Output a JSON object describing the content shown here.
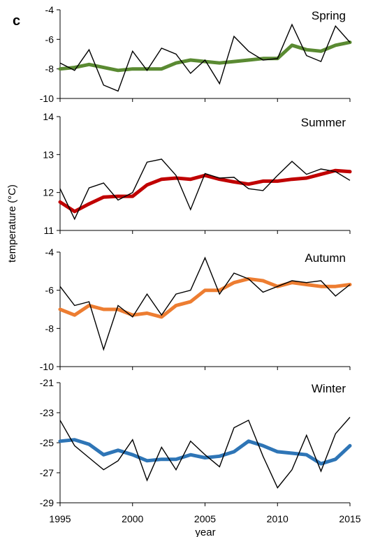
{
  "chart_data": {
    "type": "line",
    "panel_letter": "c",
    "xlabel": "year",
    "ylabel": "temperature (°C)",
    "x_ticks": [
      1995,
      2000,
      2005,
      2010,
      2015
    ],
    "years": [
      1995,
      1996,
      1997,
      1998,
      1999,
      2000,
      2001,
      2002,
      2003,
      2004,
      2005,
      2006,
      2007,
      2008,
      2009,
      2010,
      2011,
      2012,
      2013,
      2014,
      2015
    ],
    "panels": [
      {
        "label": "Spring",
        "ylim": [
          -10,
          -4
        ],
        "y_ticks": [
          -4,
          -6,
          -8,
          -10
        ],
        "color": "#5a8a32",
        "series": [
          {
            "values": [
              -8.0,
              -7.9,
              -7.7,
              -7.9,
              -8.1,
              -8.0,
              -8.0,
              -8.0,
              -7.6,
              -7.4,
              -7.5,
              -7.6,
              -7.5,
              -7.4,
              -7.3,
              -7.3,
              -6.4,
              -6.7,
              -6.8,
              -6.4,
              -6.2
            ]
          },
          {
            "values": [
              -7.6,
              -8.1,
              -6.7,
              -9.1,
              -9.5,
              -6.8,
              -8.1,
              -6.6,
              -7.0,
              -8.3,
              -7.4,
              -9.0,
              -5.8,
              -6.8,
              -7.4,
              -7.3,
              -5.0,
              -7.1,
              -7.5,
              -5.1,
              -6.2
            ]
          }
        ]
      },
      {
        "label": "Summer",
        "ylim": [
          11,
          14
        ],
        "y_ticks": [
          11,
          12,
          13,
          14
        ],
        "color": "#c00000",
        "series": [
          {
            "values": [
              11.75,
              11.5,
              11.7,
              11.88,
              11.9,
              11.9,
              12.2,
              12.35,
              12.38,
              12.35,
              12.45,
              12.35,
              12.28,
              12.22,
              12.3,
              12.3,
              12.35,
              12.38,
              12.48,
              12.58,
              12.55
            ]
          },
          {
            "values": [
              12.1,
              11.3,
              12.12,
              12.25,
              11.8,
              12.0,
              12.8,
              12.88,
              12.45,
              11.55,
              12.5,
              12.38,
              12.4,
              12.1,
              12.05,
              12.45,
              12.82,
              12.48,
              12.62,
              12.55,
              12.32
            ]
          }
        ]
      },
      {
        "label": "Autumn",
        "ylim": [
          -10,
          -4
        ],
        "y_ticks": [
          -4,
          -6,
          -8,
          -10
        ],
        "color": "#ed7d31",
        "series": [
          {
            "values": [
              -7.0,
              -7.3,
              -6.8,
              -7.0,
              -7.0,
              -7.3,
              -7.2,
              -7.4,
              -6.8,
              -6.6,
              -6.0,
              -6.0,
              -5.6,
              -5.4,
              -5.5,
              -5.8,
              -5.6,
              -5.7,
              -5.8,
              -5.8,
              -5.7
            ]
          },
          {
            "values": [
              -5.8,
              -6.8,
              -6.6,
              -9.1,
              -6.8,
              -7.4,
              -6.2,
              -7.3,
              -6.2,
              -6.0,
              -4.3,
              -6.2,
              -5.1,
              -5.4,
              -6.1,
              -5.8,
              -5.5,
              -5.6,
              -5.5,
              -6.3,
              -5.7
            ]
          }
        ]
      },
      {
        "label": "Winter",
        "ylim": [
          -29,
          -21
        ],
        "y_ticks": [
          -21,
          -23,
          -25,
          -27,
          -29
        ],
        "color": "#2e75b6",
        "series": [
          {
            "values": [
              -24.9,
              -24.8,
              -25.1,
              -25.8,
              -25.5,
              -25.8,
              -26.2,
              -26.1,
              -26.1,
              -25.8,
              -26.0,
              -25.9,
              -25.6,
              -24.9,
              -25.2,
              -25.6,
              -25.7,
              -25.8,
              -26.4,
              -26.1,
              -25.2
            ]
          },
          {
            "values": [
              -23.5,
              -25.2,
              -26.0,
              -26.8,
              -26.2,
              -24.8,
              -27.5,
              -25.3,
              -26.8,
              -24.9,
              -25.8,
              -26.6,
              -24.0,
              -23.5,
              -25.9,
              -28.0,
              -26.8,
              -24.5,
              -26.9,
              -24.4,
              -23.3
            ]
          }
        ]
      }
    ]
  }
}
